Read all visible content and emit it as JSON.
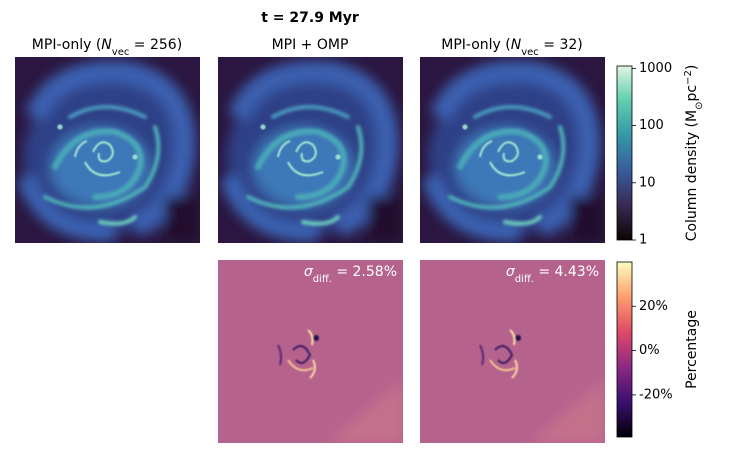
{
  "title": "t = 27.9 Myr",
  "panels": [
    {
      "label": {
        "pre": "MPI-only (",
        "italic": "N",
        "sub": "vec",
        "post": " = 256)"
      }
    },
    {
      "label": {
        "pre": "MPI + OMP"
      }
    },
    {
      "label": {
        "pre": "MPI-only (",
        "italic": "N",
        "sub": "vec",
        "post": " = 32)"
      }
    }
  ],
  "difference_panels": [
    {
      "annotation": {
        "italic": "σ",
        "sub": "diff.",
        "post": " = 2.58%"
      }
    },
    {
      "annotation": {
        "italic": "σ",
        "sub": "diff.",
        "post": " = 4.43%"
      }
    }
  ],
  "colorbars": [
    {
      "label": {
        "pre": "Column density (M",
        "sub": "⊙",
        "mid": "pc",
        "sup": "−2",
        "post": ")"
      },
      "scale": "log",
      "lim": [
        1,
        1100
      ],
      "ticks": [
        1,
        10,
        100,
        1000
      ],
      "colormap": [
        "#0b0405",
        "#382a54",
        "#395d9c",
        "#3497a9",
        "#60ceac",
        "#def5e5"
      ]
    },
    {
      "label": {
        "pre": "Percentage"
      },
      "scale": "linear",
      "lim": [
        -39,
        40
      ],
      "ticks": [
        {
          "value": -20,
          "label": "-20%"
        },
        {
          "value": 0,
          "label": "0%"
        },
        {
          "value": 20,
          "label": "20%"
        }
      ],
      "colormap": [
        "#000004",
        "#3b0f70",
        "#8c2981",
        "#de4968",
        "#fe9f6d",
        "#fcfdbf"
      ]
    }
  ]
}
